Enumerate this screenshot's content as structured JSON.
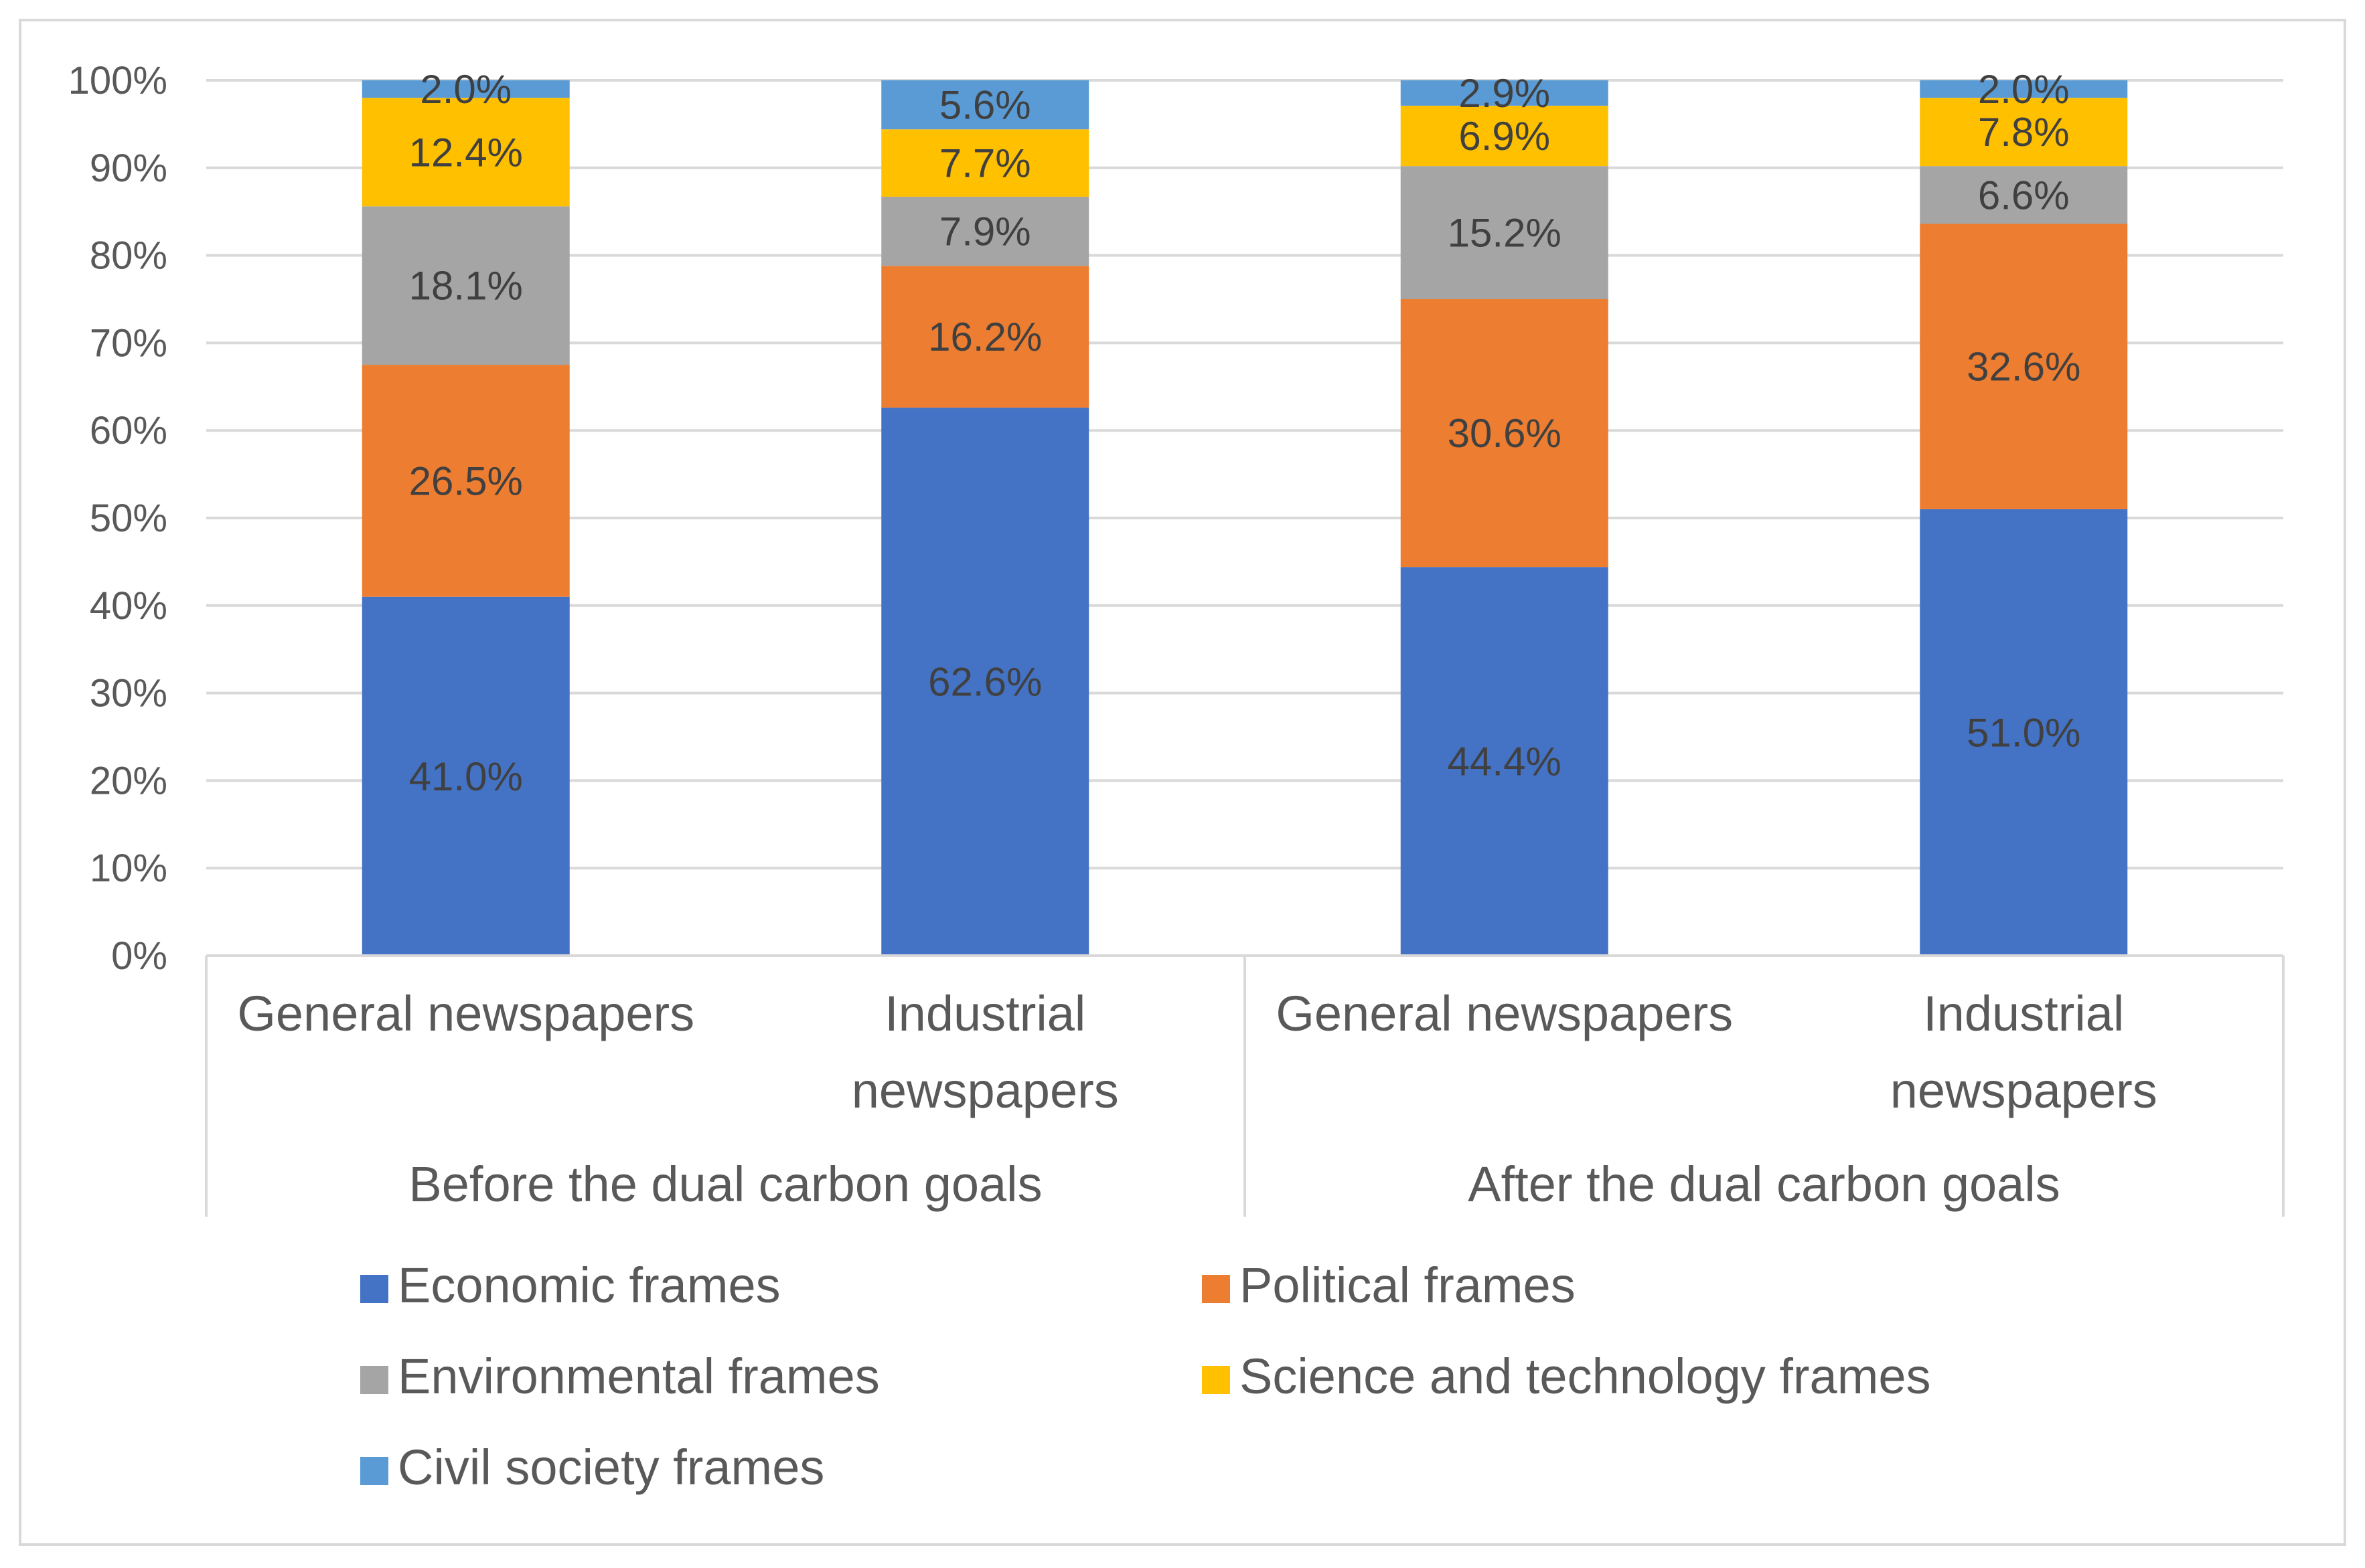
{
  "chart_data": {
    "type": "bar",
    "stacked": true,
    "percent_stacked": true,
    "title": "",
    "xlabel": "",
    "ylabel": "",
    "ylim": [
      0,
      100
    ],
    "y_ticks": [
      "0%",
      "10%",
      "20%",
      "30%",
      "40%",
      "50%",
      "60%",
      "70%",
      "80%",
      "90%",
      "100%"
    ],
    "grid": true,
    "legend_position": "bottom",
    "categories": [
      "General newspapers",
      "Industrial newspapers",
      "General newspapers",
      "Industrial newspapers"
    ],
    "category_lines": [
      [
        "General newspapers"
      ],
      [
        "Industrial",
        "newspapers"
      ],
      [
        "General newspapers"
      ],
      [
        "Industrial",
        "newspapers"
      ]
    ],
    "groups": [
      {
        "label": "Before the dual carbon goals",
        "categories": [
          0,
          1
        ]
      },
      {
        "label": "After the dual carbon goals",
        "categories": [
          2,
          3
        ]
      }
    ],
    "series": [
      {
        "name": "Economic frames",
        "color": "#4472C4",
        "values": [
          41.0,
          62.6,
          44.4,
          51.0
        ],
        "labels": [
          "41.0%",
          "62.6%",
          "44.4%",
          "51.0%"
        ]
      },
      {
        "name": "Political frames",
        "color": "#ED7D31",
        "values": [
          26.5,
          16.2,
          30.6,
          32.6
        ],
        "labels": [
          "26.5%",
          "16.2%",
          "30.6%",
          "32.6%"
        ]
      },
      {
        "name": "Environmental frames",
        "color": "#A5A5A5",
        "values": [
          18.1,
          7.9,
          15.2,
          6.6
        ],
        "labels": [
          "18.1%",
          "7.9%",
          "15.2%",
          "6.6%"
        ]
      },
      {
        "name": "Science and technology frames",
        "color": "#FFC000",
        "values": [
          12.4,
          7.7,
          6.9,
          7.8
        ],
        "labels": [
          "12.4%",
          "7.7%",
          "6.9%",
          "7.8%"
        ]
      },
      {
        "name": "Civil society frames",
        "color": "#5B9BD5",
        "values": [
          2.0,
          5.6,
          2.9,
          2.0
        ],
        "labels": [
          "2.0%",
          "5.6%",
          "2.9%",
          "2.0%"
        ]
      }
    ]
  }
}
